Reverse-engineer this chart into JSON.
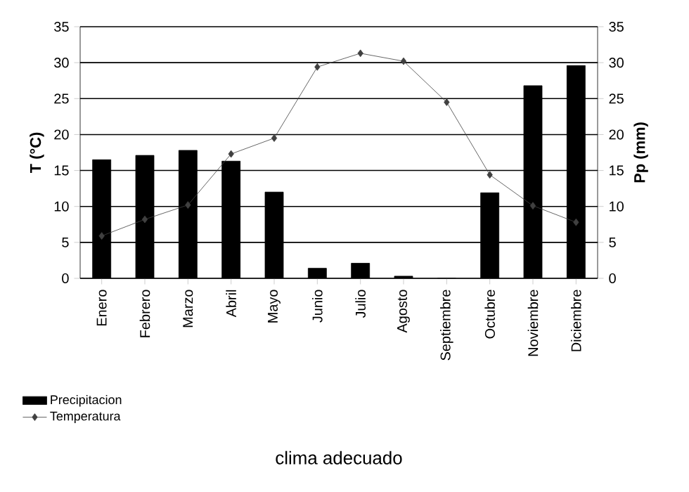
{
  "chart_data": {
    "type": "bar",
    "title": "clima adecuado",
    "ylabel": "T (°C)",
    "y2label": "Pp (mm)",
    "categories": [
      "Enero",
      "Febrero",
      "Marzo",
      "Abril",
      "Mayo",
      "Junio",
      "Julio",
      "Agosto",
      "Septiembre",
      "Octubre",
      "Noviembre",
      "Diciembre"
    ],
    "series": [
      {
        "name": "Precipitacion",
        "type": "bar",
        "axis": "y2",
        "color": "#000000",
        "values": [
          16.5,
          17.1,
          17.8,
          16.3,
          12.0,
          1.4,
          2.1,
          0.3,
          0,
          11.9,
          26.8,
          29.6
        ]
      },
      {
        "name": "Temperatura",
        "type": "line",
        "color": "#404040",
        "marker": "diamond",
        "values": [
          5.9,
          8.2,
          10.2,
          17.3,
          19.5,
          29.4,
          31.3,
          30.2,
          24.5,
          14.4,
          10.1,
          7.8
        ]
      }
    ],
    "ylim": [
      0,
      35
    ],
    "yticks": [
      0,
      5,
      10,
      15,
      20,
      25,
      30,
      35
    ],
    "y2lim": [
      0,
      35
    ],
    "y2ticks": [
      0,
      5,
      10,
      15,
      20,
      25,
      30,
      35
    ],
    "grid": "y",
    "legend": "bottom left"
  }
}
